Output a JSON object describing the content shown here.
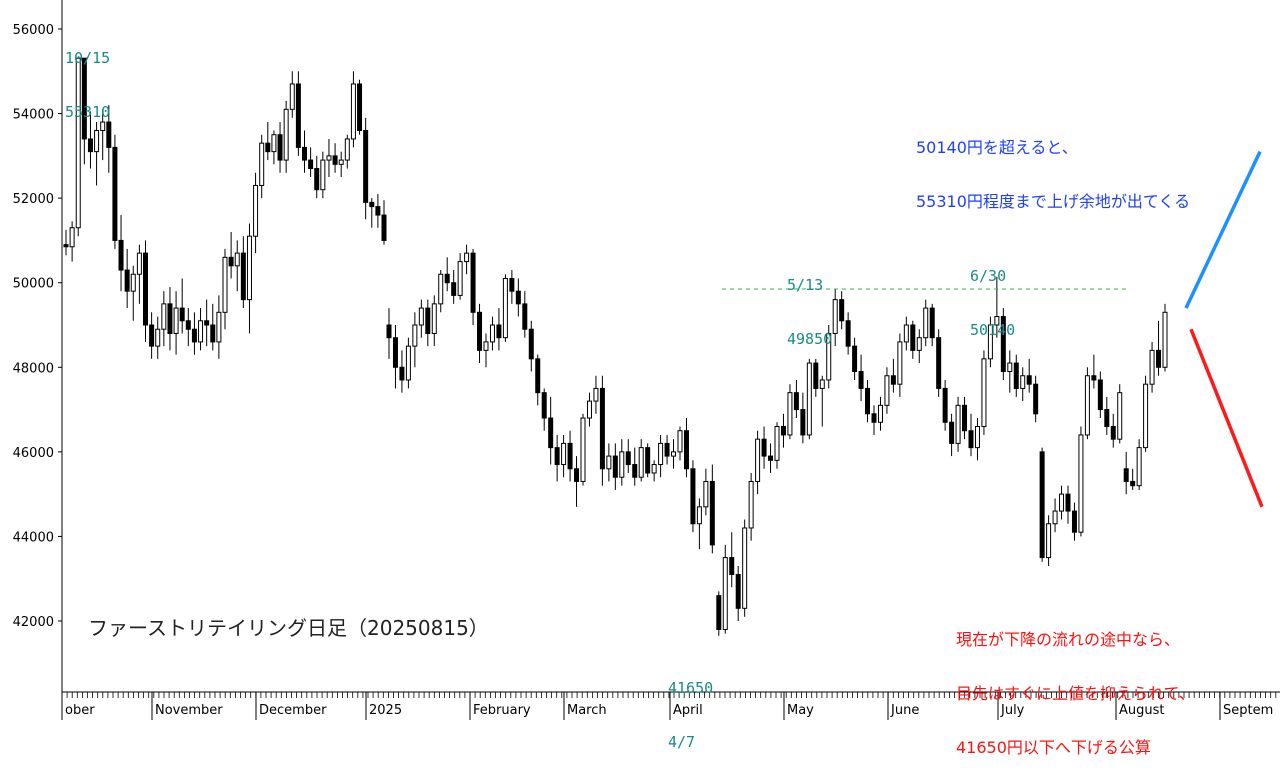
{
  "chart_data": {
    "type": "candlestick",
    "title": "ファーストリテイリング日足（20250815）",
    "ylim": [
      40500,
      56500
    ],
    "y_ticks": [
      42000,
      44000,
      46000,
      48000,
      50000,
      52000,
      54000,
      56000
    ],
    "x_ticks": [
      "ober",
      "November",
      "December",
      "2025",
      "February",
      "March",
      "April",
      "May",
      "June",
      "July",
      "August",
      "Septem"
    ],
    "grid": false,
    "reference_line": {
      "value": 49850,
      "from": "5/13",
      "to": "8/15"
    },
    "annotations": {
      "high_oct": [
        "10/15",
        "55310"
      ],
      "high_may": [
        "5/13",
        "49850"
      ],
      "high_jun": [
        "6/30",
        "50140"
      ],
      "low_apr": [
        "41650",
        "4/7"
      ],
      "bull_scenario": [
        "50140円を超えると、",
        "55310円程度まで上げ余地が出てくる"
      ],
      "bear_scenario": [
        "現在が下降の流れの途中なら、",
        "目先はすぐに上値を抑えられて、",
        "41650円以下へ下げる公算"
      ]
    },
    "arrows": [
      {
        "name": "bullish-arrow",
        "color": "#1e90ff",
        "from": 49400,
        "to": 53100
      },
      {
        "name": "bearish-arrow",
        "color": "#ff1a1a",
        "from": 48900,
        "to": 44700
      }
    ],
    "ohlc": [
      [
        50900,
        51250,
        50650,
        50850
      ],
      [
        50850,
        51450,
        50500,
        51300
      ],
      [
        51300,
        55310,
        51100,
        55310
      ],
      [
        55310,
        55300,
        52800,
        53400
      ],
      [
        53400,
        54050,
        52700,
        53100
      ],
      [
        53100,
        53800,
        52300,
        53600
      ],
      [
        53600,
        54100,
        52900,
        53800
      ],
      [
        53800,
        54200,
        52600,
        53200
      ],
      [
        53200,
        53500,
        50800,
        51000
      ],
      [
        51000,
        51600,
        49800,
        50300
      ],
      [
        50300,
        50800,
        49400,
        49800
      ],
      [
        49800,
        50400,
        49100,
        50200
      ],
      [
        50200,
        50900,
        49500,
        50700
      ],
      [
        50700,
        51000,
        48600,
        49000
      ],
      [
        49000,
        49300,
        48200,
        48500
      ],
      [
        48500,
        49200,
        48200,
        48900
      ],
      [
        48900,
        49800,
        48500,
        49500
      ],
      [
        49500,
        49900,
        48400,
        48800
      ],
      [
        48800,
        49800,
        48300,
        49400
      ],
      [
        49400,
        50100,
        48800,
        49100
      ],
      [
        49100,
        49400,
        48500,
        48900
      ],
      [
        48900,
        49300,
        48300,
        48600
      ],
      [
        48600,
        49400,
        48400,
        49100
      ],
      [
        49100,
        49600,
        48500,
        49000
      ],
      [
        49000,
        49500,
        48400,
        48600
      ],
      [
        48600,
        49700,
        48200,
        49300
      ],
      [
        49300,
        50800,
        48900,
        50600
      ],
      [
        50600,
        51200,
        50100,
        50400
      ],
      [
        50400,
        51000,
        49800,
        50700
      ],
      [
        50700,
        51100,
        49400,
        49600
      ],
      [
        49600,
        51400,
        48800,
        51100
      ],
      [
        51100,
        52600,
        50700,
        52300
      ],
      [
        52300,
        53500,
        52000,
        53300
      ],
      [
        53300,
        53800,
        52900,
        53100
      ],
      [
        53100,
        53600,
        52800,
        53500
      ],
      [
        53500,
        53800,
        52600,
        52900
      ],
      [
        52900,
        54300,
        52600,
        54100
      ],
      [
        54100,
        55000,
        53900,
        54700
      ],
      [
        54700,
        55000,
        53000,
        53200
      ],
      [
        53200,
        53600,
        52600,
        52900
      ],
      [
        52900,
        53200,
        52500,
        52700
      ],
      [
        52700,
        53000,
        52000,
        52200
      ],
      [
        52200,
        53100,
        52000,
        52900
      ],
      [
        52900,
        53400,
        52500,
        53000
      ],
      [
        53000,
        53300,
        52600,
        52800
      ],
      [
        52800,
        53100,
        52500,
        52900
      ],
      [
        52900,
        53500,
        52700,
        53400
      ],
      [
        53400,
        55000,
        53200,
        54700
      ],
      [
        54700,
        54800,
        53500,
        53600
      ],
      [
        53600,
        53900,
        51500,
        51900
      ],
      [
        51900,
        52000,
        51300,
        51800
      ],
      [
        51800,
        52100,
        51300,
        51600
      ],
      [
        51600,
        51950,
        50900,
        51000
      ],
      [
        49000,
        49400,
        48200,
        48700
      ],
      [
        48700,
        49000,
        47500,
        48000
      ],
      [
        48000,
        48400,
        47400,
        47700
      ],
      [
        47700,
        48700,
        47500,
        48500
      ],
      [
        48500,
        49300,
        48000,
        49000
      ],
      [
        49000,
        49600,
        48700,
        49400
      ],
      [
        49400,
        49600,
        48500,
        48800
      ],
      [
        48800,
        49700,
        48500,
        49500
      ],
      [
        49500,
        50300,
        49300,
        50200
      ],
      [
        50200,
        50600,
        49800,
        50000
      ],
      [
        50000,
        50300,
        49500,
        49700
      ],
      [
        49700,
        50700,
        49600,
        50500
      ],
      [
        50500,
        50900,
        50200,
        50700
      ],
      [
        50700,
        50800,
        49000,
        49300
      ],
      [
        49300,
        49500,
        48100,
        48400
      ],
      [
        48400,
        48800,
        48000,
        48600
      ],
      [
        48600,
        49200,
        48400,
        49000
      ],
      [
        49000,
        49400,
        48400,
        48700
      ],
      [
        48700,
        50200,
        48600,
        50100
      ],
      [
        50100,
        50300,
        49500,
        49800
      ],
      [
        49800,
        50100,
        49200,
        49500
      ],
      [
        49500,
        49800,
        48700,
        48900
      ],
      [
        48900,
        49100,
        47900,
        48200
      ],
      [
        48200,
        48300,
        47100,
        47400
      ],
      [
        47400,
        47500,
        46500,
        46800
      ],
      [
        46800,
        47300,
        45700,
        46100
      ],
      [
        46100,
        46400,
        45300,
        45700
      ],
      [
        45700,
        46400,
        45400,
        46200
      ],
      [
        46200,
        46500,
        45300,
        45600
      ],
      [
        45600,
        45900,
        44700,
        45300
      ],
      [
        45300,
        46900,
        45200,
        46800
      ],
      [
        46800,
        47400,
        46600,
        47200
      ],
      [
        47200,
        47800,
        46900,
        47500
      ],
      [
        47500,
        47800,
        45200,
        45600
      ],
      [
        45600,
        46200,
        45300,
        45900
      ],
      [
        45900,
        46200,
        45100,
        45400
      ],
      [
        45400,
        46300,
        45200,
        46000
      ],
      [
        46000,
        46300,
        45500,
        45700
      ],
      [
        45700,
        46100,
        45200,
        45400
      ],
      [
        45400,
        46300,
        45300,
        46100
      ],
      [
        46100,
        46200,
        45400,
        45500
      ],
      [
        45500,
        45800,
        45300,
        45700
      ],
      [
        45700,
        46400,
        45400,
        46200
      ],
      [
        46200,
        46400,
        45700,
        45900
      ],
      [
        45900,
        46300,
        45600,
        46000
      ],
      [
        46000,
        46600,
        45800,
        46500
      ],
      [
        46500,
        46800,
        45400,
        45600
      ],
      [
        45600,
        45800,
        44100,
        44300
      ],
      [
        44300,
        44900,
        43700,
        44700
      ],
      [
        44700,
        45600,
        44500,
        45300
      ],
      [
        45300,
        45700,
        43600,
        43800
      ],
      [
        42600,
        42700,
        41650,
        41800
      ],
      [
        41800,
        43800,
        41700,
        43500
      ],
      [
        43500,
        44100,
        42800,
        43100
      ],
      [
        43100,
        43300,
        42000,
        42300
      ],
      [
        42300,
        44400,
        42100,
        44200
      ],
      [
        44200,
        45500,
        43900,
        45300
      ],
      [
        45300,
        46500,
        45000,
        46300
      ],
      [
        46300,
        46600,
        45600,
        45900
      ],
      [
        45900,
        46200,
        45500,
        45800
      ],
      [
        45800,
        46700,
        45600,
        46600
      ],
      [
        46600,
        46900,
        46100,
        46400
      ],
      [
        46400,
        47600,
        46300,
        47400
      ],
      [
        47400,
        47700,
        46800,
        47000
      ],
      [
        47000,
        47400,
        46200,
        46400
      ],
      [
        46400,
        48200,
        46300,
        48100
      ],
      [
        48100,
        48200,
        47300,
        47500
      ],
      [
        47500,
        47800,
        46600,
        47700
      ],
      [
        47700,
        49000,
        47500,
        48800
      ],
      [
        48800,
        49850,
        48500,
        49600
      ],
      [
        49600,
        49800,
        48900,
        49100
      ],
      [
        49100,
        49300,
        48300,
        48500
      ],
      [
        48500,
        48700,
        47700,
        47900
      ],
      [
        47900,
        48300,
        47200,
        47500
      ],
      [
        47500,
        47700,
        46700,
        46900
      ],
      [
        46900,
        47100,
        46400,
        46700
      ],
      [
        46700,
        47300,
        46500,
        47100
      ],
      [
        47100,
        48000,
        46900,
        47800
      ],
      [
        47800,
        48200,
        47400,
        47600
      ],
      [
        47600,
        48800,
        47300,
        48600
      ],
      [
        48600,
        49200,
        48400,
        49000
      ],
      [
        49000,
        49100,
        48200,
        48400
      ],
      [
        48400,
        48900,
        48100,
        48700
      ],
      [
        48700,
        49600,
        48500,
        49400
      ],
      [
        49400,
        49500,
        48500,
        48700
      ],
      [
        48700,
        48900,
        47300,
        47500
      ],
      [
        47500,
        47700,
        46500,
        46700
      ],
      [
        46700,
        46900,
        45900,
        46200
      ],
      [
        46200,
        47300,
        46000,
        47100
      ],
      [
        47100,
        47300,
        46300,
        46500
      ],
      [
        46500,
        46900,
        45900,
        46100
      ],
      [
        46100,
        46800,
        45800,
        46600
      ],
      [
        46600,
        48400,
        46400,
        48200
      ],
      [
        48200,
        49200,
        48000,
        49000
      ],
      [
        49000,
        50140,
        48700,
        49200
      ],
      [
        49200,
        49400,
        47700,
        47900
      ],
      [
        47900,
        48400,
        47400,
        48100
      ],
      [
        48100,
        48300,
        47300,
        47500
      ],
      [
        47500,
        48000,
        47200,
        47800
      ],
      [
        47800,
        48200,
        47400,
        47600
      ],
      [
        47600,
        47800,
        46700,
        46900
      ],
      [
        46000,
        46100,
        43400,
        43500
      ],
      [
        43500,
        44500,
        43300,
        44300
      ],
      [
        44300,
        44900,
        44100,
        44600
      ],
      [
        44600,
        45200,
        44400,
        45000
      ],
      [
        45000,
        45200,
        44300,
        44600
      ],
      [
        44600,
        44800,
        43900,
        44100
      ],
      [
        44100,
        46600,
        44000,
        46400
      ],
      [
        46400,
        48000,
        46300,
        47800
      ],
      [
        47800,
        48300,
        47500,
        47700
      ],
      [
        47700,
        47900,
        46800,
        47000
      ],
      [
        47000,
        47300,
        46400,
        46600
      ],
      [
        46600,
        46900,
        46100,
        46300
      ],
      [
        46300,
        47600,
        46200,
        47400
      ],
      [
        45600,
        46000,
        45000,
        45300
      ],
      [
        45300,
        45600,
        45100,
        45200
      ],
      [
        45200,
        46300,
        45100,
        46100
      ],
      [
        46100,
        47800,
        46000,
        47600
      ],
      [
        47600,
        48600,
        47400,
        48400
      ],
      [
        48400,
        49100,
        47800,
        48000
      ],
      [
        48000,
        49500,
        47900,
        49300
      ]
    ]
  }
}
